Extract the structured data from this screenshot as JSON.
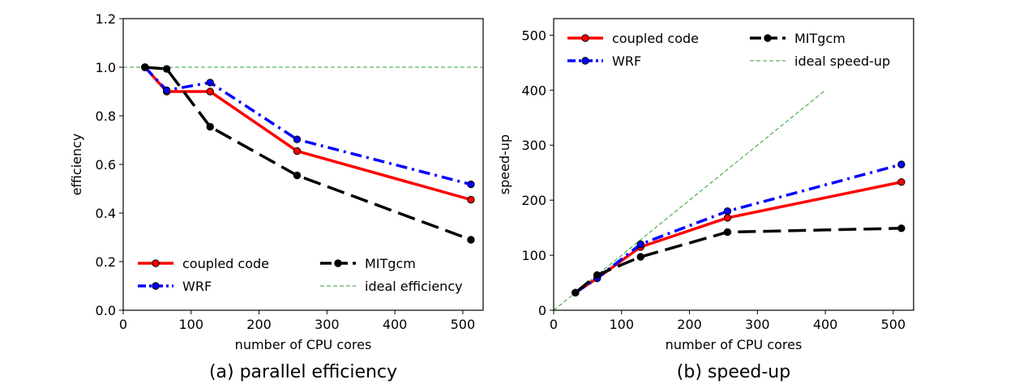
{
  "chart_data": [
    {
      "type": "line",
      "caption": "(a) parallel efficiency",
      "xlabel": "number of CPU cores",
      "ylabel": "efficiency",
      "xlim": [
        0,
        530
      ],
      "ylim": [
        0,
        1.2
      ],
      "xticks": [
        0,
        100,
        200,
        300,
        400,
        500
      ],
      "yticks": [
        0.0,
        0.2,
        0.4,
        0.6,
        0.8,
        1.0,
        1.2
      ],
      "ytick_labels": [
        "0.0",
        "0.2",
        "0.4",
        "0.6",
        "0.8",
        "1.0",
        "1.2"
      ],
      "x": [
        32,
        64,
        128,
        256,
        512
      ],
      "series": [
        {
          "name": "coupled code",
          "color": "#ff0000",
          "style": "solid",
          "values": [
            1.0,
            0.9,
            0.9,
            0.655,
            0.455
          ]
        },
        {
          "name": "WRF",
          "color": "#0000ff",
          "style": "dashdot",
          "values": [
            1.0,
            0.905,
            0.937,
            0.703,
            0.518
          ]
        },
        {
          "name": "MITgcm",
          "color": "#000000",
          "style": "dashed",
          "values": [
            1.0,
            0.993,
            0.755,
            0.555,
            0.29
          ]
        }
      ],
      "reference": {
        "name": "ideal efficiency",
        "color": "#2ca02c",
        "x": [
          0,
          530
        ],
        "y": [
          1.0,
          1.0
        ]
      },
      "legend": {
        "placement": "lower-left",
        "columns": 2
      },
      "grid": false
    },
    {
      "type": "line",
      "caption": "(b) speed-up",
      "xlabel": "number of CPU cores",
      "ylabel": "speed-up",
      "xlim": [
        0,
        530
      ],
      "ylim": [
        0,
        530
      ],
      "xticks": [
        0,
        100,
        200,
        300,
        400,
        500
      ],
      "yticks": [
        0,
        100,
        200,
        300,
        400,
        500
      ],
      "ytick_labels": [
        "0",
        "100",
        "200",
        "300",
        "400",
        "500"
      ],
      "x": [
        32,
        64,
        128,
        256,
        512
      ],
      "series": [
        {
          "name": "coupled code",
          "color": "#ff0000",
          "style": "solid",
          "values": [
            32,
            58,
            115,
            168,
            233
          ]
        },
        {
          "name": "WRF",
          "color": "#0000ff",
          "style": "dashdot",
          "values": [
            32,
            58,
            120,
            180,
            265
          ]
        },
        {
          "name": "MITgcm",
          "color": "#000000",
          "style": "dashed",
          "values": [
            32,
            64,
            97,
            142,
            149
          ]
        }
      ],
      "reference": {
        "name": "ideal speed-up",
        "color": "#2ca02c",
        "x": [
          0,
          400
        ],
        "y": [
          0,
          400
        ]
      },
      "legend": {
        "placement": "upper-left",
        "columns": 2
      },
      "grid": false
    }
  ]
}
